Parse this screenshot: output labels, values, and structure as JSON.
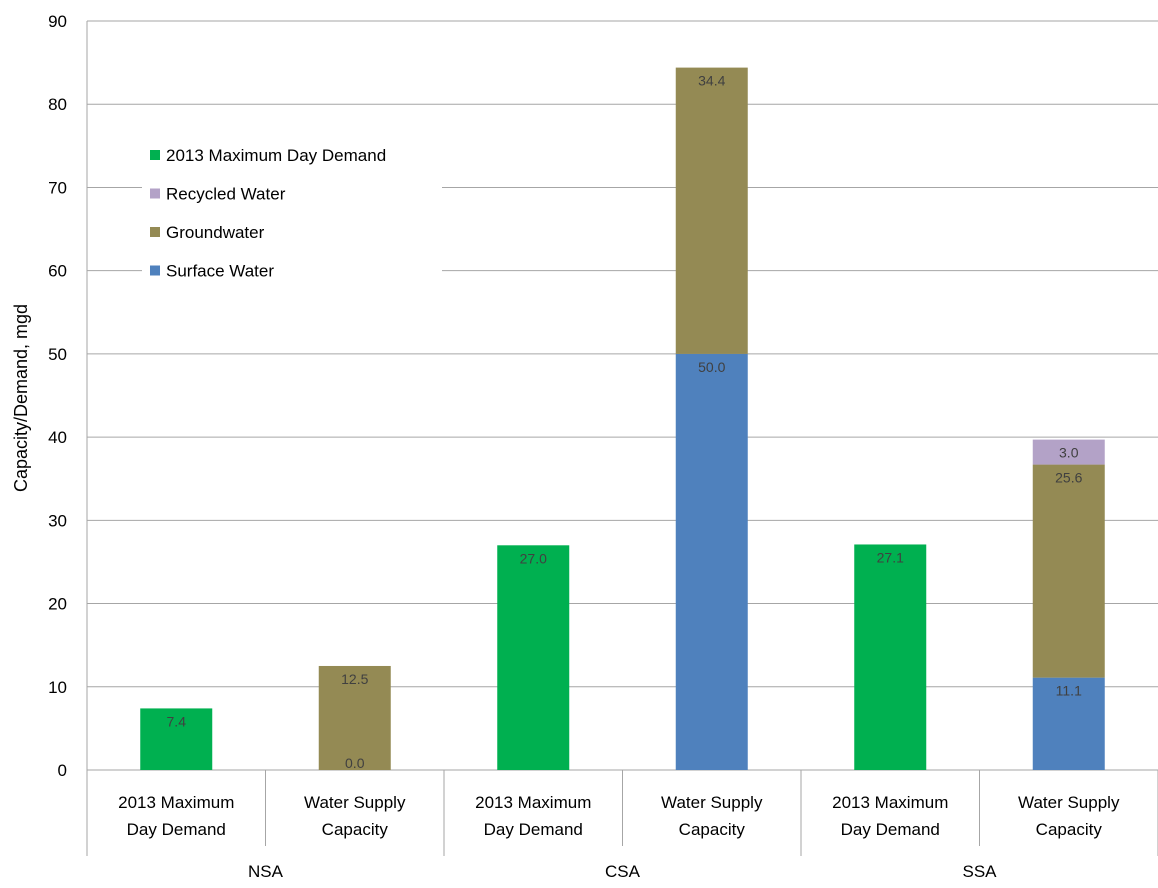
{
  "chart_data": {
    "type": "bar",
    "stacked": true,
    "title": "",
    "xlabel": "",
    "ylabel": "Capacity/Demand, mgd",
    "ylim": [
      0,
      90
    ],
    "yticks": [
      0,
      10,
      20,
      30,
      40,
      50,
      60,
      70,
      80,
      90
    ],
    "grid": true,
    "legend_position": "top-left",
    "categories": [
      {
        "line1": "2013 Maximum",
        "line2": "Day Demand",
        "group": "NSA"
      },
      {
        "line1": "Water Supply",
        "line2": "Capacity",
        "group": "NSA"
      },
      {
        "line1": "2013 Maximum",
        "line2": "Day Demand",
        "group": "CSA"
      },
      {
        "line1": "Water Supply",
        "line2": "Capacity",
        "group": "CSA"
      },
      {
        "line1": "2013 Maximum",
        "line2": "Day Demand",
        "group": "SSA"
      },
      {
        "line1": "Water Supply",
        "line2": "Capacity",
        "group": "SSA"
      }
    ],
    "groups": [
      "NSA",
      "CSA",
      "SSA"
    ],
    "series": [
      {
        "name": "Surface Water",
        "color": "#4f81bd",
        "values": [
          null,
          0.0,
          null,
          50.0,
          null,
          11.1
        ],
        "labels": [
          null,
          "0.0",
          null,
          "50.0",
          null,
          "11.1"
        ]
      },
      {
        "name": "Groundwater",
        "color": "#948a54",
        "values": [
          null,
          12.5,
          null,
          34.4,
          null,
          25.6
        ],
        "labels": [
          null,
          "12.5",
          null,
          "34.4",
          null,
          "25.6"
        ]
      },
      {
        "name": "Recycled Water",
        "color": "#b3a2c7",
        "values": [
          null,
          null,
          null,
          null,
          null,
          3.0
        ],
        "labels": [
          null,
          null,
          null,
          null,
          null,
          "3.0"
        ]
      },
      {
        "name": "2013 Maximum Day Demand",
        "color": "#00b050",
        "values": [
          7.4,
          null,
          27.0,
          null,
          27.1,
          null
        ],
        "labels": [
          "7.4",
          null,
          "27.0",
          null,
          "27.1",
          null
        ]
      }
    ],
    "legend_order": [
      "2013 Maximum Day Demand",
      "Recycled Water",
      "Groundwater",
      "Surface Water"
    ]
  }
}
